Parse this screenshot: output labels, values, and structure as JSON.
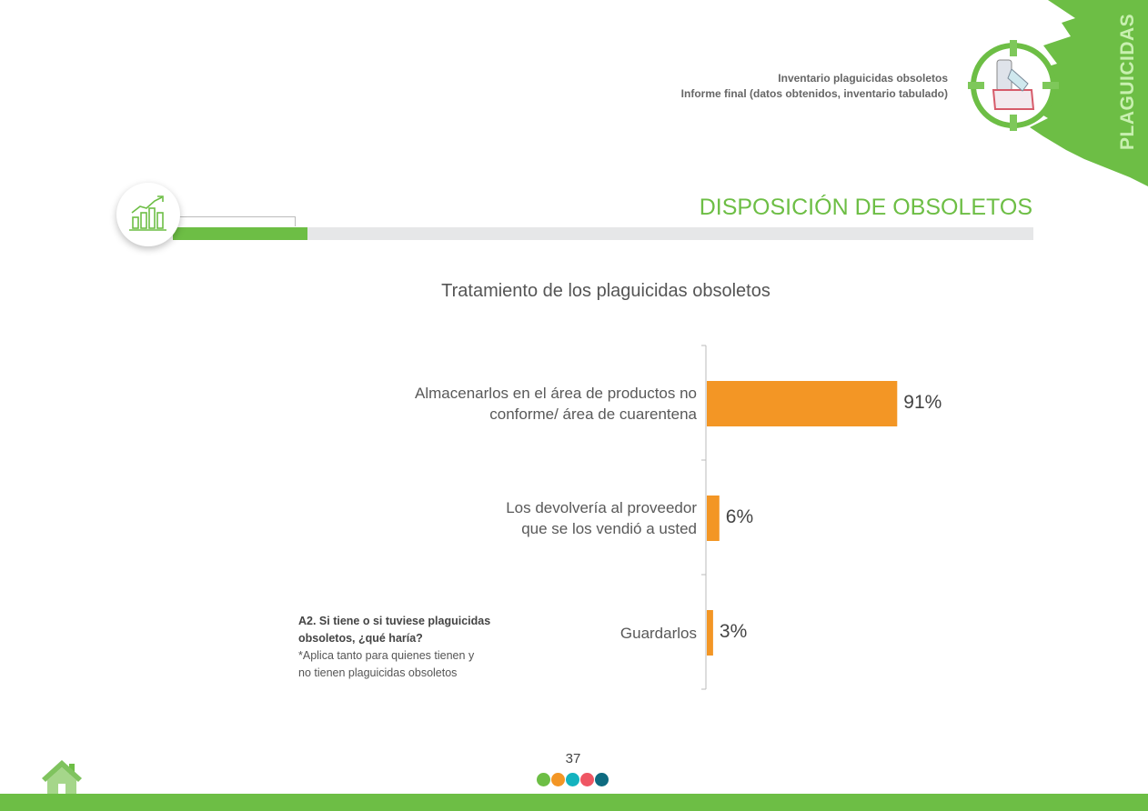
{
  "header": {
    "line1": "Inventario plaguicidas obsoletos",
    "line2": "Informe final (datos obtenidos, inventario tabulado)",
    "side_label": "PLAGUICIDAS"
  },
  "section_title": "DISPOSICIÓN DE OBSOLETOS",
  "colors": {
    "brand_green": "#6dbe45",
    "bar": "#f39625",
    "dots": [
      "#6dbe45",
      "#f39625",
      "#14b3bf",
      "#ef5663",
      "#0e6b80"
    ]
  },
  "chart_data": {
    "type": "bar",
    "orientation": "horizontal",
    "title": "Tratamiento de los plaguicidas obsoletos",
    "categories": [
      [
        "Almacenarlos en el área de productos no",
        "conforme/ área de cuarentena"
      ],
      [
        "Los devolvería al proveedor",
        "que se los vendió a usted"
      ],
      [
        "Guardarlos"
      ]
    ],
    "values": [
      91,
      6,
      3
    ],
    "labels": [
      "91%",
      "6%",
      "3%"
    ],
    "xlim": [
      0,
      100
    ],
    "xlabel": "",
    "ylabel": ""
  },
  "note": {
    "question": "A2. Si tiene o si tuviese plaguicidas obsoletos, ¿qué haría?",
    "q_line1": "A2. Si tiene o si tuviese plaguicidas",
    "q_line2": "obsoletos, ¿qué haría?",
    "sub_line1": "*Aplica tanto para quienes tienen y",
    "sub_line2": "no tienen plaguicidas obsoletos"
  },
  "footer": {
    "page": "37"
  }
}
